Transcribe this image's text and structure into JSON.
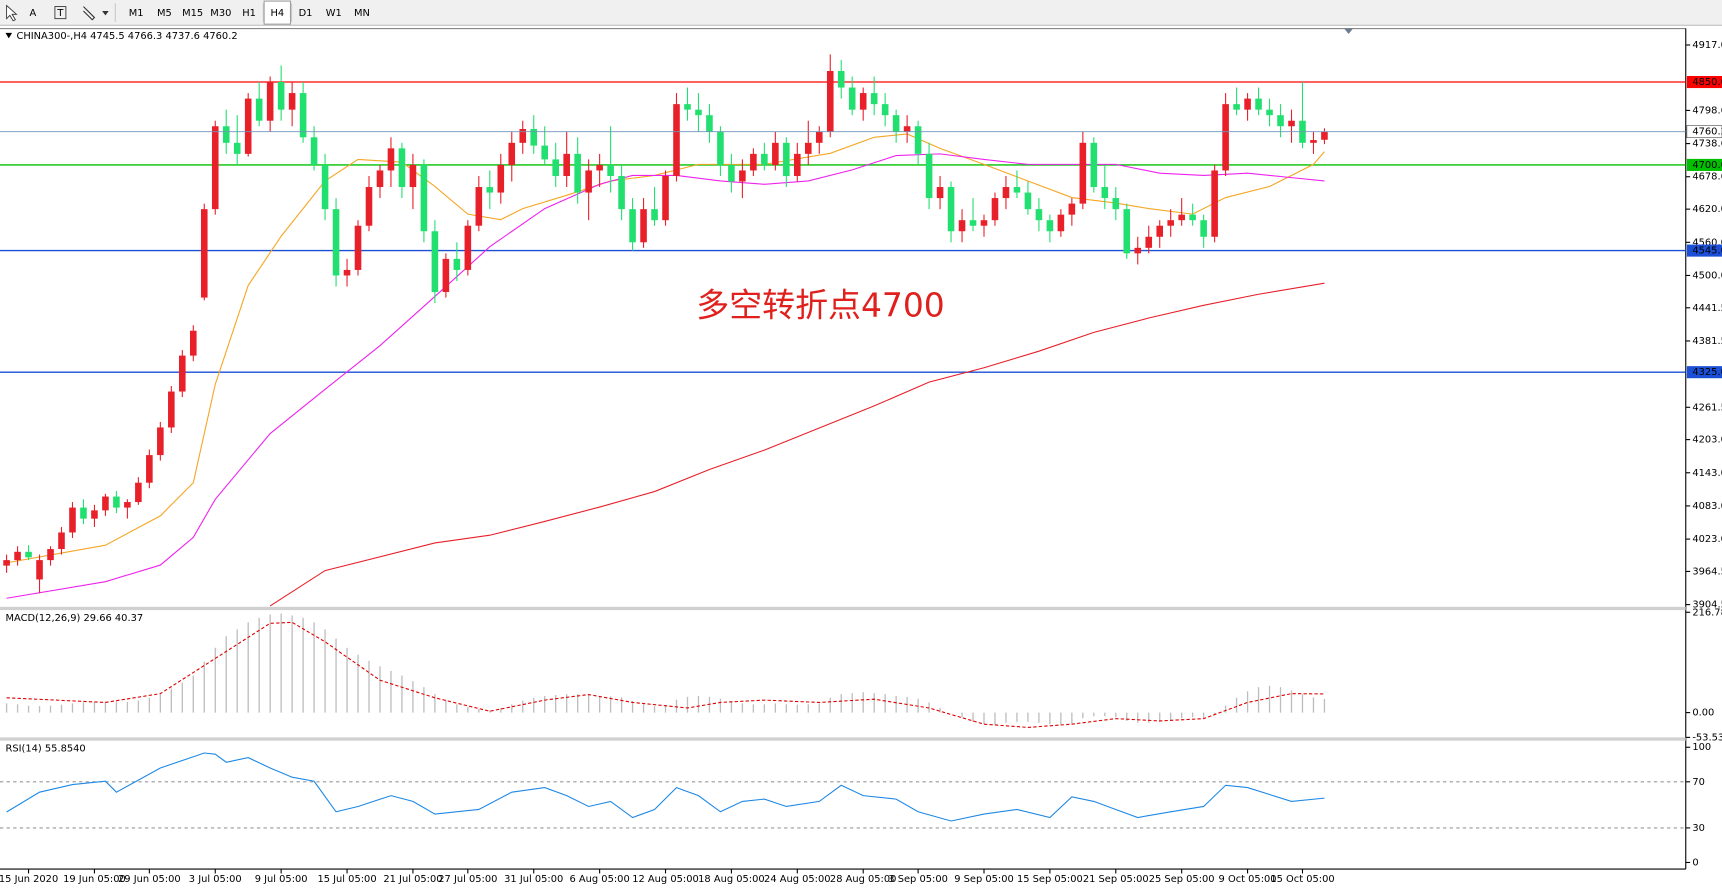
{
  "toolbar": {
    "tools": [
      "A",
      "T"
    ],
    "timeframes": [
      "M1",
      "M5",
      "M15",
      "M30",
      "H1",
      "H4",
      "D1",
      "W1",
      "MN"
    ],
    "active": "H4"
  },
  "chart_data": {
    "type": "candlestick",
    "title": "CHINA300-,H4  4745.5 4766.3 4737.6 4760.2",
    "annotation": "多空转折点4700",
    "up_color": "#e8202a",
    "down_color": "#22e070",
    "ylim": [
      3900.5,
      4944.8
    ],
    "yticks": [
      {
        "value": 4917,
        "label": "4917.0"
      },
      4798.6,
      4738.6,
      4678.6,
      {
        "value": 4620,
        "label": "4620.0"
      },
      {
        "value": 4560,
        "label": "4560.0"
      },
      {
        "value": 4500,
        "label": "4500.0"
      },
      4441.5,
      4381.5,
      4261.5,
      {
        "value": 4203,
        "label": "4203.0"
      },
      {
        "value": 4143,
        "label": "4143.0"
      },
      {
        "value": 4083,
        "label": "4083.0"
      },
      {
        "value": 4023,
        "label": "4023.0"
      },
      3964.5,
      3904.5
    ],
    "levels": [
      {
        "value": 4850,
        "label": "4850.0",
        "color": "#ff0000"
      },
      {
        "value": 4700,
        "label": "4700.0",
        "color": "#00c000"
      },
      {
        "value": 4545,
        "label": "4545.0",
        "color": "#1a4fd6"
      },
      {
        "value": 4325,
        "label": "4325.0",
        "color": "#1a4fd6"
      }
    ],
    "price_line_color": "#6f93b8",
    "categories": [
      null,
      null,
      "15 Jun 2020",
      null,
      null,
      null,
      null,
      null,
      "19 Jun 05:00",
      null,
      null,
      null,
      null,
      "29 Jun 05:00",
      null,
      null,
      null,
      null,
      null,
      "3 Jul 05:00",
      null,
      null,
      null,
      null,
      null,
      "9 Jul 05:00",
      null,
      null,
      null,
      null,
      null,
      "15 Jul 05:00",
      null,
      null,
      null,
      null,
      null,
      "21 Jul 05:00",
      null,
      null,
      null,
      null,
      "27 Jul 05:00",
      null,
      null,
      null,
      null,
      null,
      "31 Jul 05:00",
      null,
      null,
      null,
      null,
      null,
      "6 Aug 05:00",
      null,
      null,
      null,
      null,
      null,
      "12 Aug 05:00",
      null,
      null,
      null,
      null,
      null,
      "18 Aug 05:00",
      null,
      null,
      null,
      null,
      null,
      "24 Aug 05:00",
      null,
      null,
      null,
      null,
      null,
      "28 Aug 05:00",
      null,
      null,
      null,
      null,
      "3 Sep 05:00",
      null,
      null,
      null,
      null,
      null,
      "9 Sep 05:00",
      null,
      null,
      null,
      null,
      null,
      "15 Sep 05:00",
      null,
      null,
      null,
      null,
      null,
      "21 Sep 05:00",
      null,
      null,
      null,
      null,
      null,
      "25 Sep 05:00",
      null,
      null,
      null,
      null,
      null,
      "9 Oct 05:00",
      null,
      null,
      null,
      null,
      "15 Oct 05:00",
      null,
      null
    ],
    "candles": [
      [
        3975,
        3995,
        3962,
        3985
      ],
      [
        3985,
        4010,
        3975,
        4000
      ],
      [
        4000,
        4012,
        3985,
        3990
      ],
      [
        3950,
        3995,
        3925,
        3985
      ],
      [
        3985,
        4010,
        3975,
        4005
      ],
      [
        4005,
        4045,
        3995,
        4035
      ],
      [
        4035,
        4090,
        4025,
        4080
      ],
      [
        4080,
        4095,
        4050,
        4060
      ],
      [
        4060,
        4085,
        4045,
        4075
      ],
      [
        4075,
        4105,
        4065,
        4100
      ],
      [
        4100,
        4110,
        4070,
        4080
      ],
      [
        4080,
        4095,
        4060,
        4090
      ],
      [
        4090,
        4135,
        4085,
        4125
      ],
      [
        4125,
        4185,
        4115,
        4175
      ],
      [
        4175,
        4235,
        4165,
        4225
      ],
      [
        4225,
        4300,
        4215,
        4290
      ],
      [
        4290,
        4365,
        4280,
        4355
      ],
      [
        4355,
        4410,
        4345,
        4400
      ],
      [
        4460,
        4630,
        4455,
        4620
      ],
      [
        4620,
        4780,
        4610,
        4770
      ],
      [
        4770,
        4800,
        4720,
        4740
      ],
      [
        4740,
        4790,
        4700,
        4720
      ],
      [
        4720,
        4830,
        4715,
        4820
      ],
      [
        4820,
        4850,
        4770,
        4780
      ],
      [
        4780,
        4860,
        4760,
        4850
      ],
      [
        4850,
        4880,
        4780,
        4800
      ],
      [
        4800,
        4850,
        4770,
        4830
      ],
      [
        4830,
        4850,
        4740,
        4750
      ],
      [
        4750,
        4770,
        4690,
        4700
      ],
      [
        4700,
        4720,
        4600,
        4620
      ],
      [
        4620,
        4640,
        4480,
        4500
      ],
      [
        4500,
        4530,
        4480,
        4510
      ],
      [
        4510,
        4600,
        4500,
        4590
      ],
      [
        4590,
        4680,
        4580,
        4660
      ],
      [
        4660,
        4700,
        4640,
        4690
      ],
      [
        4690,
        4750,
        4660,
        4730
      ],
      [
        4730,
        4740,
        4640,
        4660
      ],
      [
        4660,
        4720,
        4620,
        4700
      ],
      [
        4700,
        4710,
        4560,
        4580
      ],
      [
        4580,
        4600,
        4450,
        4470
      ],
      [
        4470,
        4540,
        4460,
        4530
      ],
      [
        4530,
        4560,
        4490,
        4510
      ],
      [
        4510,
        4600,
        4500,
        4590
      ],
      [
        4590,
        4680,
        4580,
        4660
      ],
      [
        4660,
        4690,
        4620,
        4650
      ],
      [
        4650,
        4720,
        4630,
        4700
      ],
      [
        4700,
        4760,
        4670,
        4740
      ],
      [
        4740,
        4780,
        4720,
        4765
      ],
      [
        4765,
        4790,
        4720,
        4735
      ],
      [
        4735,
        4770,
        4700,
        4710
      ],
      [
        4710,
        4740,
        4660,
        4680
      ],
      [
        4680,
        4760,
        4660,
        4720
      ],
      [
        4720,
        4750,
        4630,
        4650
      ],
      [
        4650,
        4710,
        4600,
        4690
      ],
      [
        4690,
        4720,
        4660,
        4700
      ],
      [
        4700,
        4770,
        4650,
        4680
      ],
      [
        4680,
        4700,
        4600,
        4620
      ],
      [
        4620,
        4640,
        4545,
        4560
      ],
      [
        4560,
        4640,
        4550,
        4620
      ],
      [
        4620,
        4660,
        4590,
        4600
      ],
      [
        4600,
        4690,
        4590,
        4680
      ],
      [
        4680,
        4830,
        4670,
        4810
      ],
      [
        4810,
        4840,
        4780,
        4800
      ],
      [
        4800,
        4830,
        4760,
        4790
      ],
      [
        4790,
        4810,
        4740,
        4760
      ],
      [
        4760,
        4770,
        4680,
        4700
      ],
      [
        4700,
        4720,
        4650,
        4670
      ],
      [
        4670,
        4710,
        4640,
        4690
      ],
      [
        4690,
        4730,
        4680,
        4720
      ],
      [
        4720,
        4740,
        4690,
        4700
      ],
      [
        4700,
        4760,
        4690,
        4740
      ],
      [
        4740,
        4750,
        4660,
        4680
      ],
      [
        4680,
        4740,
        4670,
        4720
      ],
      [
        4720,
        4780,
        4700,
        4740
      ],
      [
        4740,
        4770,
        4720,
        4760
      ],
      [
        4760,
        4900,
        4750,
        4870
      ],
      [
        4870,
        4890,
        4820,
        4840
      ],
      [
        4840,
        4860,
        4790,
        4800
      ],
      [
        4800,
        4840,
        4780,
        4830
      ],
      [
        4830,
        4860,
        4790,
        4810
      ],
      [
        4810,
        4830,
        4770,
        4790
      ],
      [
        4790,
        4800,
        4740,
        4760
      ],
      [
        4760,
        4790,
        4740,
        4770
      ],
      [
        4770,
        4780,
        4700,
        4720
      ],
      [
        4720,
        4740,
        4620,
        4640
      ],
      [
        4640,
        4680,
        4620,
        4660
      ],
      [
        4660,
        4670,
        4560,
        4580
      ],
      [
        4580,
        4620,
        4560,
        4600
      ],
      [
        4600,
        4640,
        4580,
        4590
      ],
      [
        4590,
        4610,
        4570,
        4600
      ],
      [
        4600,
        4650,
        4590,
        4640
      ],
      [
        4640,
        4680,
        4620,
        4660
      ],
      [
        4660,
        4690,
        4640,
        4650
      ],
      [
        4650,
        4670,
        4610,
        4620
      ],
      [
        4620,
        4640,
        4580,
        4600
      ],
      [
        4600,
        4610,
        4560,
        4580
      ],
      [
        4580,
        4620,
        4570,
        4610
      ],
      [
        4610,
        4640,
        4590,
        4630
      ],
      [
        4630,
        4760,
        4620,
        4740
      ],
      [
        4740,
        4750,
        4650,
        4660
      ],
      [
        4660,
        4700,
        4620,
        4640
      ],
      [
        4640,
        4660,
        4600,
        4620
      ],
      [
        4620,
        4630,
        4530,
        4540
      ],
      [
        4540,
        4570,
        4520,
        4550
      ],
      [
        4550,
        4590,
        4540,
        4570
      ],
      [
        4570,
        4600,
        4550,
        4590
      ],
      [
        4590,
        4620,
        4570,
        4600
      ],
      [
        4600,
        4640,
        4590,
        4610
      ],
      [
        4610,
        4630,
        4590,
        4600
      ],
      [
        4600,
        4610,
        4550,
        4570
      ],
      [
        4570,
        4700,
        4560,
        4690
      ],
      [
        4690,
        4830,
        4680,
        4810
      ],
      [
        4810,
        4840,
        4790,
        4800
      ],
      [
        4800,
        4830,
        4780,
        4820
      ],
      [
        4820,
        4840,
        4790,
        4800
      ],
      [
        4800,
        4820,
        4770,
        4790
      ],
      [
        4790,
        4810,
        4750,
        4770
      ],
      [
        4770,
        4800,
        4740,
        4780
      ],
      [
        4780,
        4850,
        4730,
        4740
      ],
      [
        4740,
        4760,
        4720,
        4745
      ],
      [
        4745.5,
        4766.3,
        4737.6,
        4760.2
      ]
    ],
    "moving_averages": [
      {
        "color": "#f5a623",
        "x": [
          0,
          9,
          14,
          17,
          19,
          22,
          25,
          29,
          32,
          36,
          39,
          42,
          45,
          47,
          51,
          55,
          59,
          63,
          69,
          75,
          79,
          82,
          85,
          89,
          93,
          97,
          101,
          104,
          108,
          111,
          115,
          119,
          120
        ],
        "values": [
          3980,
          4012,
          4065,
          4125,
          4303,
          4482,
          4571,
          4671,
          4710,
          4705,
          4661,
          4611,
          4601,
          4621,
          4645,
          4671,
          4681,
          4701,
          4701,
          4721,
          4750,
          4756,
          4730,
          4701,
          4671,
          4641,
          4631,
          4621,
          4611,
          4641,
          4661,
          4701,
          4724
        ]
      },
      {
        "color": "#ee22ee",
        "x": [
          0,
          9,
          14,
          17,
          19,
          24,
          29,
          34,
          39,
          44,
          49,
          54,
          57,
          61,
          65,
          69,
          73,
          77,
          81,
          85,
          89,
          93,
          97,
          101,
          105,
          109,
          113,
          117,
          120
        ],
        "values": [
          3916,
          3946,
          3976,
          4026,
          4095,
          4214,
          4294,
          4373,
          4462,
          4552,
          4621,
          4665,
          4681,
          4681,
          4671,
          4665,
          4671,
          4691,
          4717,
          4720,
          4710,
          4701,
          4701,
          4701,
          4685,
          4681,
          4685,
          4677,
          4671
        ]
      },
      {
        "color": "#e8202a",
        "x": [
          24,
          29,
          39,
          44,
          49,
          54,
          59,
          64,
          69,
          74,
          79,
          84,
          89,
          94,
          99,
          104,
          109,
          114,
          120
        ],
        "values": [
          3902,
          3966,
          4016,
          4030,
          4055,
          4081,
          4109,
          4149,
          4184,
          4224,
          4264,
          4307,
          4333,
          4363,
          4397,
          4423,
          4446,
          4466,
          4486
        ]
      }
    ],
    "macd": {
      "title": "MACD(12,26,9) 29.66 40.37",
      "ylim": [
        -53.53,
        216.78
      ],
      "yticks": [
        216.78,
        {
          "value": 0,
          "label": "0.00"
        },
        -53.53
      ],
      "histogram": {
        "color": "#bdbdbd",
        "values": [
          20,
          18,
          15,
          14,
          15,
          17,
          20,
          22,
          22,
          24,
          24,
          23,
          26,
          32,
          40,
          52,
          65,
          80,
          110,
          140,
          165,
          180,
          195,
          205,
          212,
          214,
          210,
          205,
          195,
          180,
          160,
          140,
          125,
          112,
          100,
          90,
          80,
          68,
          55,
          40,
          28,
          18,
          12,
          8,
          5,
          10,
          18,
          26,
          32,
          36,
          38,
          40,
          40,
          38,
          36,
          35,
          33,
          25,
          18,
          14,
          16,
          28,
          34,
          36,
          34,
          30,
          25,
          20,
          18,
          18,
          20,
          18,
          17,
          18,
          20,
          32,
          40,
          42,
          44,
          42,
          40,
          36,
          34,
          30,
          22,
          10,
          0,
          -10,
          -20,
          -25,
          -26,
          -22,
          -20,
          -20,
          -22,
          -25,
          -26,
          -24,
          -12,
          -8,
          -8,
          -10,
          -18,
          -22,
          -22,
          -20,
          -16,
          -12,
          -10,
          -12,
          -4,
          15,
          32,
          46,
          55,
          58,
          55,
          48,
          40,
          33,
          29.66
        ]
      },
      "signal": {
        "color": "#e00000",
        "x": [
          0,
          9,
          14,
          19,
          24,
          26,
          29,
          34,
          39,
          44,
          49,
          53,
          57,
          62,
          65,
          69,
          74,
          79,
          84,
          89,
          93,
          97,
          101,
          105,
          109,
          113,
          117,
          120
        ],
        "values": [
          32,
          22,
          41,
          117,
          193,
          195,
          153,
          70,
          32,
          3,
          27,
          39,
          22,
          10,
          22,
          27,
          22,
          29,
          10,
          -25,
          -32,
          -25,
          -13,
          -18,
          -13,
          22,
          41,
          40.37
        ]
      }
    },
    "rsi": {
      "title": "RSI(14) 55.8540",
      "ylim": [
        0,
        100
      ],
      "yticks": [
        100,
        70,
        30,
        0
      ],
      "color": "#1e88e5",
      "x": [
        0,
        3,
        6,
        9,
        10,
        14,
        18,
        19,
        20,
        22,
        24,
        26,
        28,
        30,
        32,
        35,
        37,
        39,
        43,
        46,
        49,
        51,
        53,
        55,
        57,
        59,
        61,
        63,
        65,
        67,
        69,
        71,
        74,
        76,
        78,
        81,
        83,
        86,
        89,
        92,
        95,
        97,
        99,
        101,
        103,
        106,
        109,
        111,
        113,
        117,
        120
      ],
      "values": [
        43.8,
        61,
        67.6,
        70.5,
        61,
        82,
        95,
        94,
        87,
        91,
        82,
        74,
        70.5,
        44,
        48.6,
        58,
        53,
        42,
        46,
        61,
        65,
        58,
        48.6,
        53,
        39,
        46,
        65,
        58,
        44,
        53,
        55,
        48.6,
        53,
        67,
        58,
        55,
        44,
        36,
        42,
        46,
        39,
        57,
        53,
        46,
        39,
        44,
        48.6,
        67,
        65,
        53,
        55.854
      ]
    }
  }
}
